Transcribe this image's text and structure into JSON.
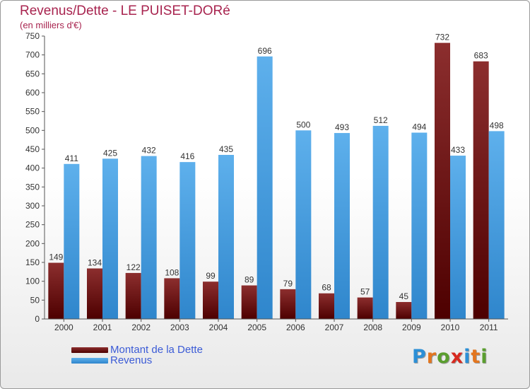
{
  "title": "Revenus/Dette - LE PUISET-DORé",
  "subtitle": "(en milliers d'€)",
  "colors": {
    "title": "#a8244f",
    "dette_top": "#8c2e2e",
    "dette_bottom": "#4d0000",
    "revenus_top": "#5eb0ec",
    "revenus_bottom": "#2f86cc",
    "legend_text": "#3b5bd6"
  },
  "chart_data": {
    "type": "bar",
    "categories": [
      "2000",
      "2001",
      "2002",
      "2003",
      "2004",
      "2005",
      "2006",
      "2007",
      "2008",
      "2009",
      "2010",
      "2011"
    ],
    "series": [
      {
        "name": "Montant de la Dette",
        "values": [
          149,
          134,
          122,
          108,
          99,
          89,
          79,
          68,
          57,
          45,
          732,
          683
        ]
      },
      {
        "name": "Revenus",
        "values": [
          411,
          425,
          432,
          416,
          435,
          696,
          500,
          493,
          512,
          494,
          433,
          498
        ]
      }
    ],
    "ylim": [
      0,
      750
    ],
    "ytick_step": 50,
    "grid": false,
    "legend": "bottom-left"
  },
  "legend": {
    "dette_label": "Montant de la Dette",
    "revenus_label": "Revenus"
  },
  "logo": {
    "text": "Proxiti",
    "letter_colors": [
      "#2b8fd6",
      "#e3761f",
      "#5a9e2e",
      "#d7291f",
      "#2b8fd6",
      "#e3761f",
      "#5a9e2e"
    ]
  }
}
